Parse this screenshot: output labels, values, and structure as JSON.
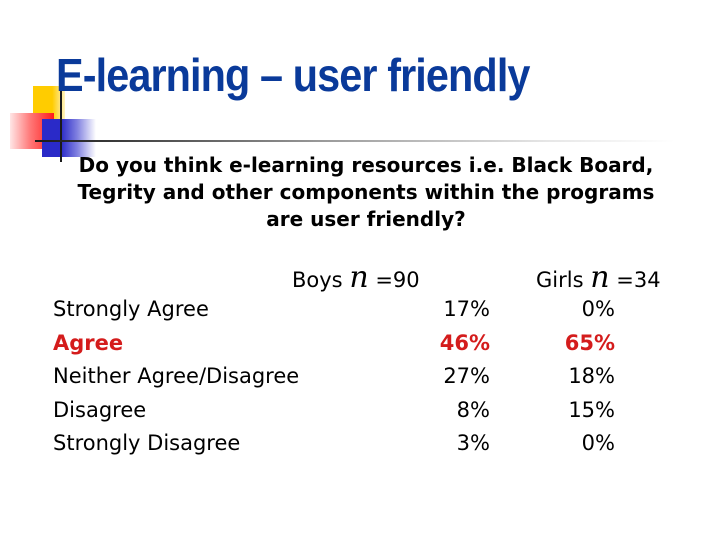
{
  "slide": {
    "title": "E-learning – user friendly",
    "title_color": "#0a3a9a",
    "highlight_color": "#d41c1c",
    "question_lines": [
      "Do you think e-learning resources i.e. Black Board,",
      "Tegrity and other components within the programs",
      "are user friendly?"
    ]
  },
  "table": {
    "columns": [
      {
        "label": "Boys",
        "n_symbol": "n",
        "n_value": "=90"
      },
      {
        "label": "Girls",
        "n_symbol": "n",
        "n_value": "=34"
      }
    ],
    "rows": [
      {
        "label": "Strongly Agree",
        "boys": "17%",
        "girls": "0%",
        "highlight": false
      },
      {
        "label": "Agree",
        "boys": "46%",
        "girls": "65%",
        "highlight": true
      },
      {
        "label": "Neither Agree/Disagree",
        "boys": "27%",
        "girls": "18%",
        "highlight": false
      },
      {
        "label": "Disagree",
        "boys": "8%",
        "girls": "15%",
        "highlight": false
      },
      {
        "label": "Strongly Disagree",
        "boys": "3%",
        "girls": "0%",
        "highlight": false
      }
    ]
  }
}
